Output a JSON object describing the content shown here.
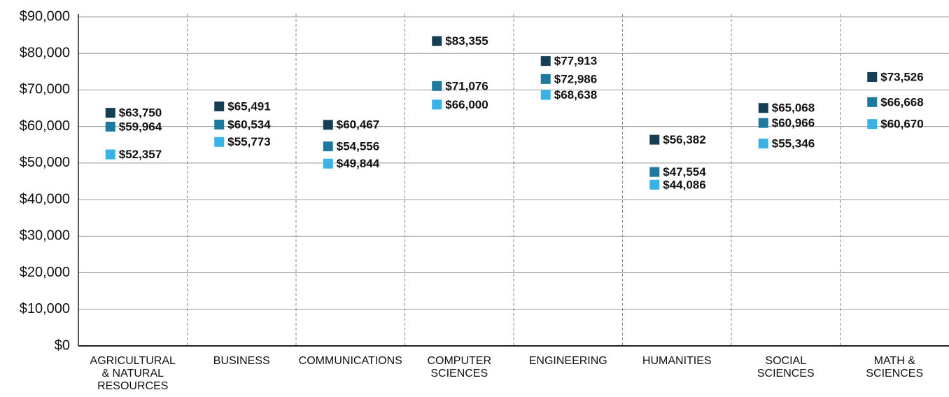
{
  "chart_data": {
    "type": "dot",
    "categories": [
      "AGRICULTURAL\n& NATURAL\nRESOURCES",
      "BUSINESS",
      "COMMUNICATIONS",
      "COMPUTER\nSCIENCES",
      "ENGINEERING",
      "HUMANITIES",
      "SOCIAL\nSCIENCES",
      "MATH &\nSCIENCES"
    ],
    "series": [
      {
        "color": "#143f55",
        "values": [
          63750,
          65491,
          60467,
          83355,
          77913,
          56382,
          65068,
          73526
        ],
        "value_labels": [
          "$63,750",
          "$65,491",
          "$60,467",
          "$83,355",
          "$77,913",
          "$56,382",
          "$65,068",
          "$73,526"
        ]
      },
      {
        "color": "#1d7a9e",
        "values": [
          59964,
          60534,
          54556,
          71076,
          72986,
          47554,
          60966,
          66668
        ],
        "value_labels": [
          "$59,964",
          "$60,534",
          "$54,556",
          "$71,076",
          "$72,986",
          "$47,554",
          "$60,966",
          "$66,668"
        ]
      },
      {
        "color": "#39b3e6",
        "values": [
          52357,
          55773,
          49844,
          66000,
          68638,
          44086,
          55346,
          60670
        ],
        "value_labels": [
          "$52,357",
          "$55,773",
          "$49,844",
          "$66,000",
          "$68,638",
          "$44,086",
          "$55,346",
          "$60,670"
        ]
      }
    ],
    "ylim": [
      0,
      90000
    ],
    "yticks": [
      {
        "value": 0,
        "label": "$0"
      },
      {
        "value": 10000,
        "label": "$10,000"
      },
      {
        "value": 20000,
        "label": "$20,000"
      },
      {
        "value": 30000,
        "label": "$30,000"
      },
      {
        "value": 40000,
        "label": "$40,000"
      },
      {
        "value": 50000,
        "label": "$50,000"
      },
      {
        "value": 60000,
        "label": "$60,000"
      },
      {
        "value": 70000,
        "label": "$70,000"
      },
      {
        "value": 80000,
        "label": "$80,000"
      },
      {
        "value": 90000,
        "label": "$90,000"
      }
    ],
    "grid": true
  }
}
